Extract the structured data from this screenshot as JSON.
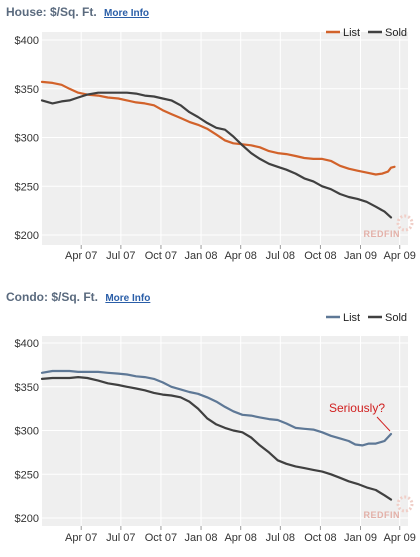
{
  "charts": [
    {
      "header_title": "House: $/Sq. Ft.",
      "more_info": "More Info",
      "watermark": "REDFIN"
    },
    {
      "header_title": "Condo: $/Sq. Ft.",
      "more_info": "More Info",
      "watermark": "REDFIN",
      "annotation": "Seriously?"
    }
  ],
  "chart_data": [
    {
      "type": "line",
      "title": "House: $/Sq. Ft.",
      "xlabel": "",
      "ylabel": "",
      "ylim": [
        195,
        405
      ],
      "xlim": [
        "2007-01-01",
        "2009-04-20"
      ],
      "y_ticks": [
        {
          "value": 200,
          "label": "$200"
        },
        {
          "value": 250,
          "label": "$250"
        },
        {
          "value": 300,
          "label": "$300"
        },
        {
          "value": 350,
          "label": "$350"
        },
        {
          "value": 400,
          "label": "$400"
        }
      ],
      "x_ticks": [
        {
          "date": "2007-04-01",
          "label": "Apr 07"
        },
        {
          "date": "2007-07-01",
          "label": "Jul 07"
        },
        {
          "date": "2007-10-01",
          "label": "Oct 07"
        },
        {
          "date": "2008-01-01",
          "label": "Jan 08"
        },
        {
          "date": "2008-04-01",
          "label": "Apr 08"
        },
        {
          "date": "2008-07-01",
          "label": "Jul 08"
        },
        {
          "date": "2008-10-01",
          "label": "Oct 08"
        },
        {
          "date": "2009-01-01",
          "label": "Jan 09"
        },
        {
          "date": "2009-04-01",
          "label": "Apr 09"
        }
      ],
      "grid": true,
      "legend_position": "top-right",
      "series": [
        {
          "name": "List",
          "color": "#d2622a",
          "points": [
            [
              "2007-01-01",
              357
            ],
            [
              "2007-01-25",
              356
            ],
            [
              "2007-02-15",
              354
            ],
            [
              "2007-03-05",
              350
            ],
            [
              "2007-03-25",
              346
            ],
            [
              "2007-04-15",
              344
            ],
            [
              "2007-05-10",
              343
            ],
            [
              "2007-06-01",
              341
            ],
            [
              "2007-06-25",
              340
            ],
            [
              "2007-07-15",
              338
            ],
            [
              "2007-08-05",
              336
            ],
            [
              "2007-08-25",
              335
            ],
            [
              "2007-09-15",
              333
            ],
            [
              "2007-10-05",
              328
            ],
            [
              "2007-10-25",
              324
            ],
            [
              "2007-11-15",
              320
            ],
            [
              "2007-12-05",
              316
            ],
            [
              "2007-12-25",
              313
            ],
            [
              "2008-01-15",
              309
            ],
            [
              "2008-02-05",
              303
            ],
            [
              "2008-02-25",
              297
            ],
            [
              "2008-03-15",
              294
            ],
            [
              "2008-04-05",
              293
            ],
            [
              "2008-04-25",
              292
            ],
            [
              "2008-05-15",
              290
            ],
            [
              "2008-06-05",
              286
            ],
            [
              "2008-06-25",
              284
            ],
            [
              "2008-07-15",
              283
            ],
            [
              "2008-08-05",
              281
            ],
            [
              "2008-08-25",
              279
            ],
            [
              "2008-09-15",
              278
            ],
            [
              "2008-10-05",
              278
            ],
            [
              "2008-10-25",
              276
            ],
            [
              "2008-11-15",
              271
            ],
            [
              "2008-12-05",
              268
            ],
            [
              "2008-12-25",
              266
            ],
            [
              "2009-01-15",
              264
            ],
            [
              "2009-02-05",
              262
            ],
            [
              "2009-02-20",
              263
            ],
            [
              "2009-03-05",
              265
            ],
            [
              "2009-03-12",
              269
            ],
            [
              "2009-03-20",
              270
            ]
          ]
        },
        {
          "name": "Sold",
          "color": "#404040",
          "points": [
            [
              "2007-01-01",
              338
            ],
            [
              "2007-01-25",
              335
            ],
            [
              "2007-02-15",
              337
            ],
            [
              "2007-03-05",
              338
            ],
            [
              "2007-03-25",
              341
            ],
            [
              "2007-04-15",
              344
            ],
            [
              "2007-05-10",
              346
            ],
            [
              "2007-06-01",
              346
            ],
            [
              "2007-06-25",
              346
            ],
            [
              "2007-07-15",
              346
            ],
            [
              "2007-08-05",
              345
            ],
            [
              "2007-08-25",
              343
            ],
            [
              "2007-09-15",
              342
            ],
            [
              "2007-10-05",
              340
            ],
            [
              "2007-10-25",
              338
            ],
            [
              "2007-11-15",
              333
            ],
            [
              "2007-12-05",
              326
            ],
            [
              "2007-12-25",
              321
            ],
            [
              "2008-01-15",
              315
            ],
            [
              "2008-02-05",
              310
            ],
            [
              "2008-02-25",
              308
            ],
            [
              "2008-03-15",
              301
            ],
            [
              "2008-04-05",
              292
            ],
            [
              "2008-04-25",
              284
            ],
            [
              "2008-05-15",
              278
            ],
            [
              "2008-06-05",
              273
            ],
            [
              "2008-06-25",
              270
            ],
            [
              "2008-07-15",
              267
            ],
            [
              "2008-08-05",
              263
            ],
            [
              "2008-08-25",
              258
            ],
            [
              "2008-09-15",
              255
            ],
            [
              "2008-10-05",
              250
            ],
            [
              "2008-10-25",
              247
            ],
            [
              "2008-11-15",
              242
            ],
            [
              "2008-12-05",
              239
            ],
            [
              "2008-12-25",
              237
            ],
            [
              "2009-01-15",
              234
            ],
            [
              "2009-02-05",
              229
            ],
            [
              "2009-02-25",
              224
            ],
            [
              "2009-03-12",
              218
            ]
          ]
        }
      ]
    },
    {
      "type": "line",
      "title": "Condo: $/Sq. Ft.",
      "xlabel": "",
      "ylabel": "",
      "ylim": [
        195,
        405
      ],
      "xlim": [
        "2007-01-01",
        "2009-04-20"
      ],
      "y_ticks": [
        {
          "value": 200,
          "label": "$200"
        },
        {
          "value": 250,
          "label": "$250"
        },
        {
          "value": 300,
          "label": "$300"
        },
        {
          "value": 350,
          "label": "$350"
        },
        {
          "value": 400,
          "label": "$400"
        }
      ],
      "x_ticks": [
        {
          "date": "2007-04-01",
          "label": "Apr 07"
        },
        {
          "date": "2007-07-01",
          "label": "Jul 07"
        },
        {
          "date": "2007-10-01",
          "label": "Oct 07"
        },
        {
          "date": "2008-01-01",
          "label": "Jan 08"
        },
        {
          "date": "2008-04-01",
          "label": "Apr 08"
        },
        {
          "date": "2008-07-01",
          "label": "Jul 08"
        },
        {
          "date": "2008-10-01",
          "label": "Oct 08"
        },
        {
          "date": "2009-01-01",
          "label": "Jan 09"
        },
        {
          "date": "2009-04-01",
          "label": "Apr 09"
        }
      ],
      "grid": true,
      "legend_position": "top-right",
      "annotation": {
        "text": "Seriously?",
        "color": "#d12020",
        "points_to": [
          "2009-03-12",
          296
        ]
      },
      "series": [
        {
          "name": "List",
          "color": "#5e7896",
          "points": [
            [
              "2007-01-01",
              366
            ],
            [
              "2007-01-25",
              368
            ],
            [
              "2007-02-15",
              368
            ],
            [
              "2007-03-05",
              368
            ],
            [
              "2007-03-25",
              367
            ],
            [
              "2007-04-15",
              367
            ],
            [
              "2007-05-10",
              367
            ],
            [
              "2007-06-01",
              366
            ],
            [
              "2007-06-25",
              365
            ],
            [
              "2007-07-15",
              364
            ],
            [
              "2007-08-05",
              362
            ],
            [
              "2007-08-25",
              361
            ],
            [
              "2007-09-15",
              359
            ],
            [
              "2007-10-05",
              355
            ],
            [
              "2007-10-25",
              350
            ],
            [
              "2007-11-15",
              347
            ],
            [
              "2007-12-05",
              344
            ],
            [
              "2007-12-25",
              342
            ],
            [
              "2008-01-15",
              338
            ],
            [
              "2008-02-05",
              333
            ],
            [
              "2008-02-25",
              327
            ],
            [
              "2008-03-15",
              322
            ],
            [
              "2008-04-05",
              318
            ],
            [
              "2008-04-25",
              317
            ],
            [
              "2008-05-15",
              315
            ],
            [
              "2008-06-05",
              313
            ],
            [
              "2008-06-25",
              312
            ],
            [
              "2008-07-15",
              308
            ],
            [
              "2008-08-05",
              303
            ],
            [
              "2008-08-25",
              302
            ],
            [
              "2008-09-15",
              301
            ],
            [
              "2008-10-05",
              298
            ],
            [
              "2008-10-25",
              294
            ],
            [
              "2008-11-15",
              291
            ],
            [
              "2008-12-05",
              288
            ],
            [
              "2008-12-20",
              284
            ],
            [
              "2009-01-05",
              283
            ],
            [
              "2009-01-20",
              285
            ],
            [
              "2009-02-05",
              285
            ],
            [
              "2009-02-25",
              288
            ],
            [
              "2009-03-12",
              296
            ]
          ]
        },
        {
          "name": "Sold",
          "color": "#404040",
          "points": [
            [
              "2007-01-01",
              359
            ],
            [
              "2007-01-25",
              360
            ],
            [
              "2007-02-15",
              360
            ],
            [
              "2007-03-05",
              360
            ],
            [
              "2007-03-25",
              361
            ],
            [
              "2007-04-15",
              360
            ],
            [
              "2007-05-10",
              357
            ],
            [
              "2007-06-01",
              354
            ],
            [
              "2007-06-25",
              352
            ],
            [
              "2007-07-15",
              350
            ],
            [
              "2007-08-05",
              348
            ],
            [
              "2007-08-25",
              346
            ],
            [
              "2007-09-15",
              343
            ],
            [
              "2007-10-05",
              341
            ],
            [
              "2007-10-25",
              340
            ],
            [
              "2007-11-15",
              338
            ],
            [
              "2007-12-05",
              333
            ],
            [
              "2007-12-25",
              325
            ],
            [
              "2008-01-15",
              314
            ],
            [
              "2008-02-05",
              307
            ],
            [
              "2008-02-25",
              303
            ],
            [
              "2008-03-15",
              300
            ],
            [
              "2008-04-05",
              298
            ],
            [
              "2008-04-25",
              292
            ],
            [
              "2008-05-15",
              283
            ],
            [
              "2008-06-05",
              275
            ],
            [
              "2008-06-25",
              266
            ],
            [
              "2008-07-15",
              262
            ],
            [
              "2008-08-05",
              259
            ],
            [
              "2008-08-25",
              257
            ],
            [
              "2008-09-15",
              255
            ],
            [
              "2008-10-05",
              253
            ],
            [
              "2008-10-25",
              250
            ],
            [
              "2008-11-15",
              246
            ],
            [
              "2008-12-05",
              242
            ],
            [
              "2008-12-25",
              239
            ],
            [
              "2009-01-15",
              235
            ],
            [
              "2009-02-05",
              232
            ],
            [
              "2009-02-25",
              226
            ],
            [
              "2009-03-12",
              221
            ]
          ]
        }
      ]
    }
  ]
}
